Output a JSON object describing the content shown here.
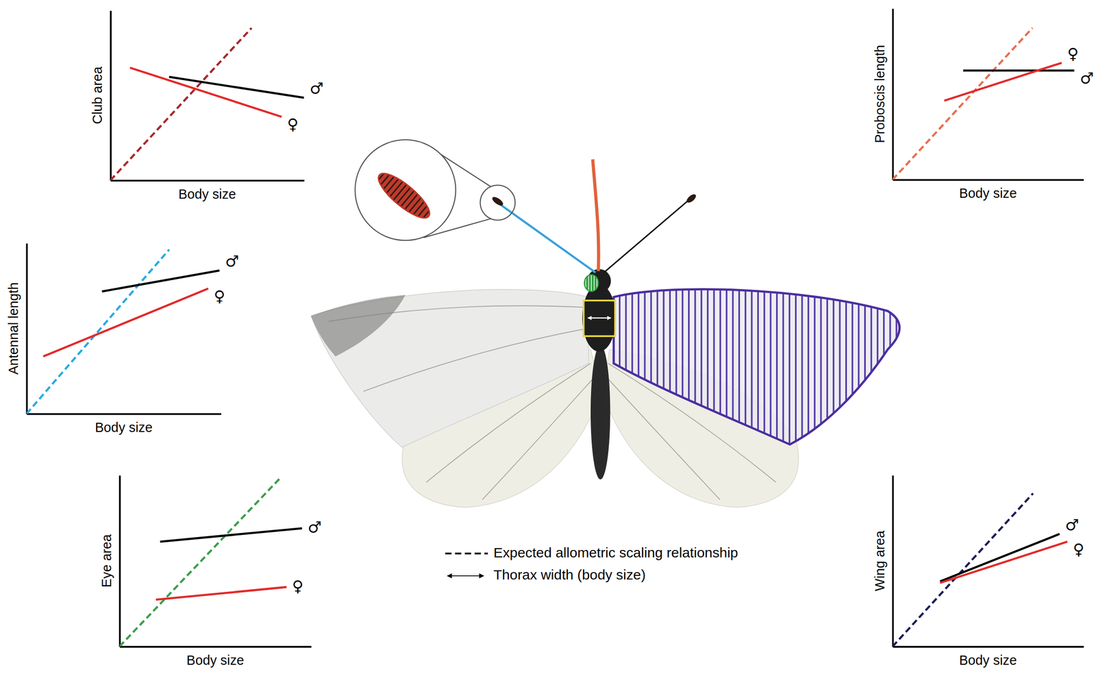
{
  "chart_data": [
    {
      "type": "line",
      "x_label": "Body size",
      "y_label": "Club area",
      "xlim": [
        0,
        10
      ],
      "ylim": [
        0,
        10
      ],
      "xticks": [],
      "yticks": [],
      "tick_labels": false,
      "series": [
        {
          "color": "#a8282a",
          "line_style": "dashed",
          "x": [
            0,
            7.29
          ],
          "values": [
            0,
            8.97
          ]
        },
        {
          "name": "♂",
          "color": "#000000",
          "line_style": "solid",
          "x": [
            3.03,
            10
          ],
          "values": [
            6.09,
            4.86
          ]
        },
        {
          "name": "♀",
          "color": "#e32a2a",
          "line_style": "solid",
          "x": [
            1.01,
            8.84
          ],
          "values": [
            6.63,
            3.74
          ]
        }
      ]
    },
    {
      "type": "line",
      "x_label": "Body size",
      "y_label": "Antennal length",
      "xlim": [
        0,
        10
      ],
      "ylim": [
        0,
        10
      ],
      "xticks": [],
      "yticks": [],
      "tick_labels": false,
      "series": [
        {
          "color": "#29aae1",
          "line_style": "dashed",
          "x": [
            0,
            7.34
          ],
          "values": [
            0,
            9.63
          ]
        },
        {
          "name": "♂",
          "color": "#000000",
          "line_style": "solid",
          "x": [
            3.88,
            9.93
          ],
          "values": [
            7.17,
            8.4
          ]
        },
        {
          "name": "♀",
          "color": "#e32a2a",
          "line_style": "solid",
          "x": [
            0.86,
            9.35
          ],
          "values": [
            3.36,
            7.34
          ]
        }
      ]
    },
    {
      "type": "line",
      "x_label": "Body size",
      "y_label": "Eye area",
      "xlim": [
        0,
        10
      ],
      "ylim": [
        0,
        10
      ],
      "xticks": [],
      "yticks": [],
      "tick_labels": false,
      "series": [
        {
          "color": "#3a9e4a",
          "line_style": "dashed",
          "x": [
            0,
            8.36
          ],
          "values": [
            0,
            9.8
          ]
        },
        {
          "name": "♂",
          "color": "#000000",
          "line_style": "solid",
          "x": [
            2.12,
            9.53
          ],
          "values": [
            6.12,
            6.9
          ]
        },
        {
          "name": "♀",
          "color": "#e32a2a",
          "line_style": "solid",
          "x": [
            1.9,
            8.72
          ],
          "values": [
            2.73,
            3.47
          ]
        }
      ]
    },
    {
      "type": "line",
      "x_label": "Body size",
      "y_label": "Proboscis length",
      "xlim": [
        0,
        10
      ],
      "ylim": [
        0,
        10
      ],
      "xticks": [],
      "yticks": [],
      "tick_labels": false,
      "series": [
        {
          "color": "#e76f51",
          "line_style": "dashed",
          "x": [
            0,
            7.33
          ],
          "values": [
            0,
            8.86
          ]
        },
        {
          "name": "♂",
          "color": "#000000",
          "line_style": "solid",
          "x": [
            3.7,
            9.52
          ],
          "values": [
            6.37,
            6.37
          ]
        },
        {
          "name": "♀",
          "color": "#e32a2a",
          "line_style": "solid",
          "x": [
            2.71,
            8.86
          ],
          "values": [
            4.61,
            6.82
          ]
        }
      ]
    },
    {
      "type": "line",
      "x_label": "Body size",
      "y_label": "Wing area",
      "xlim": [
        0,
        10
      ],
      "ylim": [
        0,
        10
      ],
      "xticks": [],
      "yticks": [],
      "tick_labels": false,
      "series": [
        {
          "color": "#1c1d55",
          "line_style": "dashed",
          "x": [
            0,
            7.36
          ],
          "values": [
            0,
            8.94
          ]
        },
        {
          "name": "♂",
          "color": "#000000",
          "line_style": "solid",
          "x": [
            2.49,
            8.75
          ],
          "values": [
            3.8,
            6.57
          ]
        },
        {
          "name": "♀",
          "color": "#e32a2a",
          "line_style": "solid",
          "x": [
            2.49,
            9.16
          ],
          "values": [
            3.71,
            6.12
          ]
        }
      ]
    }
  ],
  "key": {
    "expected": "Expected allometric scaling relationship",
    "thorax": "Thorax width (body size)"
  }
}
